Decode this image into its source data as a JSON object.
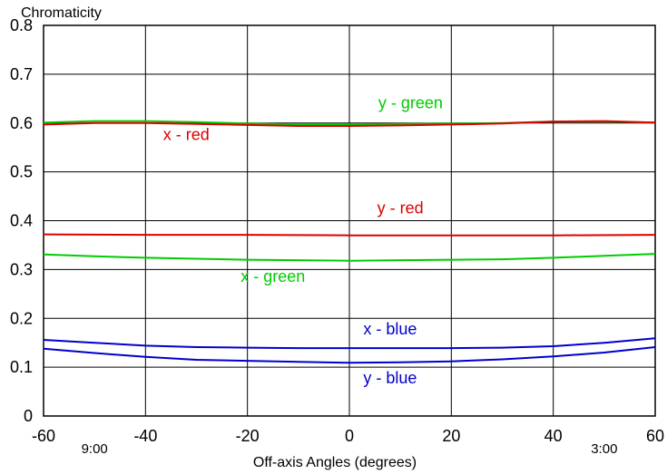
{
  "chart_data": {
    "type": "line",
    "title": "",
    "xlabel": "Off-axis Angles (degrees)",
    "ylabel": "Chromaticity",
    "xlim": [
      -60,
      60
    ],
    "ylim": [
      0,
      0.8
    ],
    "grid": true,
    "x_ticks": [
      -60,
      -40,
      -20,
      0,
      20,
      40,
      60
    ],
    "y_ticks": [
      0,
      0.1,
      0.2,
      0.3,
      0.4,
      0.5,
      0.6,
      0.7,
      0.8
    ],
    "annotations": [
      {
        "text": "9:00",
        "x": -50
      },
      {
        "text": "3:00",
        "x": 50
      }
    ],
    "series": [
      {
        "name": "y - green",
        "color": "#00cc00",
        "x": [
          -60,
          -50,
          -40,
          -30,
          -20,
          -10,
          0,
          10,
          20,
          30,
          40,
          50,
          60
        ],
        "y": [
          0.601,
          0.604,
          0.604,
          0.602,
          0.599,
          0.597,
          0.597,
          0.598,
          0.599,
          0.6,
          0.603,
          0.603,
          0.601
        ],
        "label_pos": {
          "x": 12,
          "y": 0.63
        }
      },
      {
        "name": "x - red",
        "color": "#dd0000",
        "x": [
          -60,
          -50,
          -40,
          -30,
          -20,
          -10,
          0,
          10,
          20,
          30,
          40,
          50,
          60
        ],
        "y": [
          0.597,
          0.6,
          0.6,
          0.598,
          0.596,
          0.594,
          0.594,
          0.595,
          0.597,
          0.599,
          0.603,
          0.604,
          0.601
        ],
        "label_pos": {
          "x": -32,
          "y": 0.565
        }
      },
      {
        "name": "y - red",
        "color": "#dd0000",
        "x": [
          -60,
          -40,
          -20,
          0,
          20,
          40,
          60
        ],
        "y": [
          0.372,
          0.371,
          0.371,
          0.37,
          0.37,
          0.37,
          0.371
        ],
        "label_pos": {
          "x": 10,
          "y": 0.415
        }
      },
      {
        "name": "x - green",
        "color": "#00cc00",
        "x": [
          -60,
          -50,
          -40,
          -30,
          -20,
          -10,
          0,
          10,
          20,
          30,
          40,
          50,
          60
        ],
        "y": [
          0.331,
          0.327,
          0.324,
          0.322,
          0.32,
          0.319,
          0.318,
          0.319,
          0.32,
          0.321,
          0.324,
          0.328,
          0.332
        ],
        "label_pos": {
          "x": -15,
          "y": 0.275
        }
      },
      {
        "name": "x - blue",
        "color": "#0000cc",
        "x": [
          -60,
          -50,
          -40,
          -30,
          -20,
          -10,
          0,
          10,
          20,
          30,
          40,
          50,
          60
        ],
        "y": [
          0.156,
          0.15,
          0.144,
          0.141,
          0.14,
          0.139,
          0.139,
          0.139,
          0.139,
          0.14,
          0.143,
          0.15,
          0.159
        ],
        "label_pos": {
          "x": 8,
          "y": 0.167
        }
      },
      {
        "name": "y - blue",
        "color": "#0000cc",
        "x": [
          -60,
          -50,
          -40,
          -30,
          -20,
          -10,
          0,
          10,
          20,
          30,
          40,
          50,
          60
        ],
        "y": [
          0.138,
          0.129,
          0.121,
          0.115,
          0.113,
          0.111,
          0.109,
          0.11,
          0.112,
          0.116,
          0.122,
          0.13,
          0.141
        ],
        "label_pos": {
          "x": 8,
          "y": 0.067
        }
      }
    ]
  }
}
